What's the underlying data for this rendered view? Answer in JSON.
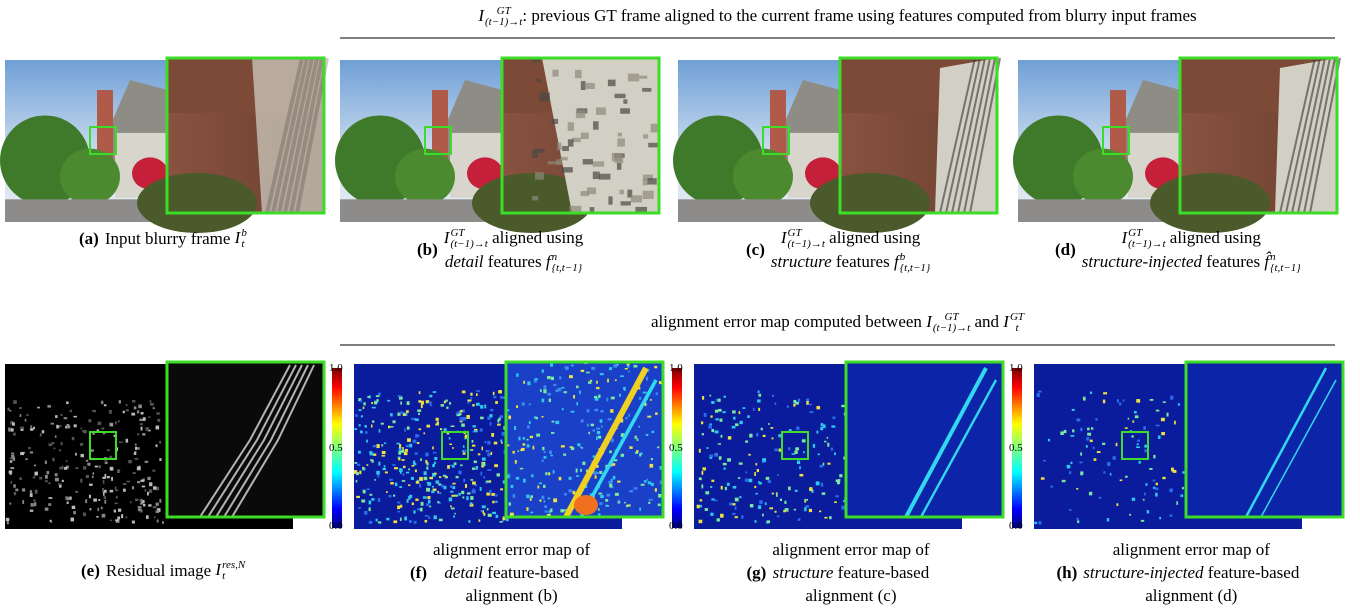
{
  "row1": {
    "heading": {
      "math": {
        "base": "I",
        "sup": "GT",
        "sub": "(t−1)→t"
      },
      "text": ": previous GT frame aligned to the current frame using features computed from blurry input frames"
    },
    "panels": [
      {
        "label": "(a)",
        "text": "Input blurry frame",
        "math": {
          "base": "I",
          "sup": "b",
          "sub": "t"
        }
      },
      {
        "label": "(b)",
        "math": {
          "base": "I",
          "sup": "GT",
          "sub": "(t−1)→t"
        },
        "text": "aligned using",
        "emph": "detail",
        "text2": "features",
        "math2": {
          "base": "f",
          "sup": "n",
          "sub": "{t,t−1}"
        }
      },
      {
        "label": "(c)",
        "math": {
          "base": "I",
          "sup": "GT",
          "sub": "(t−1)→t"
        },
        "text": "aligned using",
        "emph": "structure",
        "text2": "features",
        "math2": {
          "base": "f",
          "sup": "b",
          "sub": "{t,t−1}"
        }
      },
      {
        "label": "(d)",
        "math": {
          "base": "I",
          "sup": "GT",
          "sub": "(t−1)→t"
        },
        "text": "aligned using",
        "emph": "structure-injected",
        "text2": "features",
        "math2": {
          "base": "f̂",
          "sup": "n",
          "sub": "{t,t−1}"
        }
      }
    ]
  },
  "row2": {
    "heading": {
      "text": "alignment error map computed between",
      "math": {
        "base": "I",
        "sup": "GT",
        "sub": "(t−1)→t"
      },
      "and": "and",
      "math2": {
        "base": "I",
        "sup": "GT",
        "sub": "t"
      }
    },
    "colorbar_ticks": [
      "1.0",
      "0.5",
      "0.0"
    ],
    "panels": [
      {
        "label": "(e)",
        "text": "Residual image",
        "math": {
          "base": "I",
          "sup": "res,N",
          "sub": "t"
        }
      },
      {
        "label": "(f)",
        "text": "alignment error map of",
        "emph": "detail",
        "text2": "feature-based",
        "text3": "alignment (b)"
      },
      {
        "label": "(g)",
        "text": "alignment error map of",
        "emph": "structure",
        "text2": "feature-based",
        "text3": "alignment (c)"
      },
      {
        "label": "(h)",
        "text": "alignment error map of",
        "emph": "structure-injected",
        "text2": "feature-based",
        "text3": "alignment (d)"
      }
    ]
  }
}
